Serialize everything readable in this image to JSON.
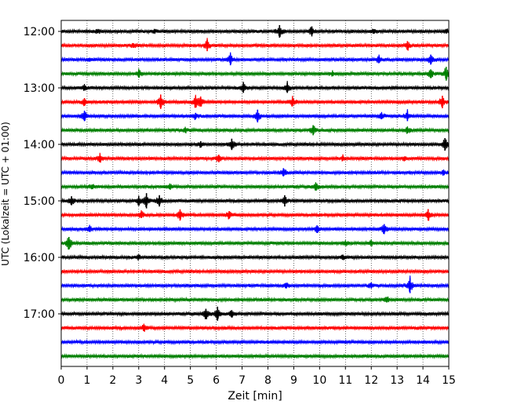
{
  "chart_data": {
    "type": "line",
    "title": "",
    "xlabel": "Zeit  [min]",
    "ylabel": "UTC (Lokalzeit = UTC + 01:00)",
    "xlim": [
      0,
      15
    ],
    "x_ticks": [
      0,
      1,
      2,
      3,
      4,
      5,
      6,
      7,
      8,
      9,
      10,
      11,
      12,
      13,
      14,
      15
    ],
    "y_tick_labels": [
      "12:00",
      "13:00",
      "14:00",
      "15:00",
      "16:00",
      "17:00"
    ],
    "grid": "vertical-dotted",
    "colors": {
      "black": "#000000",
      "red": "#ff0000",
      "blue": "#0000ff",
      "green": "#008000"
    },
    "series": [
      {
        "start": "12:00",
        "color": "black",
        "events": [
          [
            1.4,
            0.25
          ],
          [
            3.6,
            0.25
          ],
          [
            8.45,
            1.0
          ],
          [
            9.7,
            0.8
          ],
          [
            12.1,
            0.35
          ],
          [
            14.9,
            0.35
          ]
        ]
      },
      {
        "start": "12:15",
        "color": "red",
        "events": [
          [
            2.8,
            0.35
          ],
          [
            5.65,
            0.9
          ],
          [
            13.4,
            0.7
          ]
        ]
      },
      {
        "start": "12:30",
        "color": "blue",
        "events": [
          [
            1.1,
            0.3
          ],
          [
            6.55,
            0.9
          ],
          [
            12.3,
            0.55
          ],
          [
            14.3,
            0.8
          ]
        ]
      },
      {
        "start": "12:45",
        "color": "green",
        "events": [
          [
            3.0,
            0.6
          ],
          [
            10.5,
            0.3
          ],
          [
            14.3,
            0.7
          ],
          [
            14.9,
            1.1
          ]
        ]
      },
      {
        "start": "13:00",
        "color": "black",
        "events": [
          [
            0.9,
            0.35
          ],
          [
            7.05,
            0.8
          ],
          [
            8.75,
            0.8
          ]
        ]
      },
      {
        "start": "13:15",
        "color": "red",
        "events": [
          [
            0.9,
            0.6
          ],
          [
            3.85,
            1.1
          ],
          [
            5.2,
            0.9
          ],
          [
            5.4,
            0.7
          ],
          [
            8.95,
            0.7
          ],
          [
            14.75,
            1.0
          ]
        ]
      },
      {
        "start": "13:30",
        "color": "blue",
        "events": [
          [
            0.9,
            0.8
          ],
          [
            5.2,
            0.5
          ],
          [
            7.6,
            1.0
          ],
          [
            12.4,
            0.5
          ],
          [
            13.4,
            0.8
          ]
        ]
      },
      {
        "start": "13:45",
        "color": "green",
        "events": [
          [
            4.8,
            0.35
          ],
          [
            9.75,
            0.8
          ],
          [
            13.4,
            0.5
          ]
        ]
      },
      {
        "start": "14:00",
        "color": "black",
        "events": [
          [
            5.4,
            0.5
          ],
          [
            6.6,
            0.9
          ],
          [
            14.85,
            1.0
          ]
        ]
      },
      {
        "start": "14:15",
        "color": "red",
        "events": [
          [
            1.5,
            0.6
          ],
          [
            6.1,
            0.6
          ],
          [
            10.9,
            0.35
          ],
          [
            13.3,
            0.35
          ]
        ]
      },
      {
        "start": "14:30",
        "color": "blue",
        "events": [
          [
            8.6,
            0.6
          ],
          [
            14.8,
            0.35
          ]
        ]
      },
      {
        "start": "14:45",
        "color": "green",
        "events": [
          [
            1.2,
            0.35
          ],
          [
            4.2,
            0.4
          ],
          [
            9.85,
            0.6
          ]
        ]
      },
      {
        "start": "15:00",
        "color": "black",
        "events": [
          [
            0.4,
            0.7
          ],
          [
            3.0,
            0.8
          ],
          [
            3.3,
            1.2
          ],
          [
            3.8,
            0.9
          ],
          [
            8.65,
            0.9
          ]
        ]
      },
      {
        "start": "15:15",
        "color": "red",
        "events": [
          [
            3.1,
            0.5
          ],
          [
            4.6,
            0.9
          ],
          [
            6.5,
            0.6
          ],
          [
            14.2,
            0.9
          ]
        ]
      },
      {
        "start": "15:30",
        "color": "blue",
        "events": [
          [
            1.1,
            0.45
          ],
          [
            9.9,
            0.6
          ],
          [
            12.5,
            0.8
          ]
        ]
      },
      {
        "start": "15:45",
        "color": "green",
        "events": [
          [
            0.3,
            1.0
          ],
          [
            11.0,
            0.35
          ],
          [
            12.0,
            0.35
          ]
        ]
      },
      {
        "start": "16:00",
        "color": "black",
        "events": [
          [
            3.0,
            0.35
          ],
          [
            10.9,
            0.4
          ]
        ]
      },
      {
        "start": "16:15",
        "color": "red",
        "events": []
      },
      {
        "start": "16:30",
        "color": "blue",
        "events": [
          [
            8.7,
            0.45
          ],
          [
            12.0,
            0.45
          ],
          [
            13.5,
            1.2
          ]
        ]
      },
      {
        "start": "16:45",
        "color": "green",
        "events": [
          [
            12.6,
            0.45
          ]
        ]
      },
      {
        "start": "17:00",
        "color": "black",
        "events": [
          [
            5.6,
            0.8
          ],
          [
            6.05,
            1.1
          ],
          [
            6.6,
            0.6
          ]
        ]
      },
      {
        "start": "17:15",
        "color": "red",
        "events": [
          [
            3.2,
            0.5
          ]
        ]
      },
      {
        "start": "17:30",
        "color": "blue",
        "events": []
      },
      {
        "start": "17:45",
        "color": "green",
        "events": []
      }
    ]
  }
}
